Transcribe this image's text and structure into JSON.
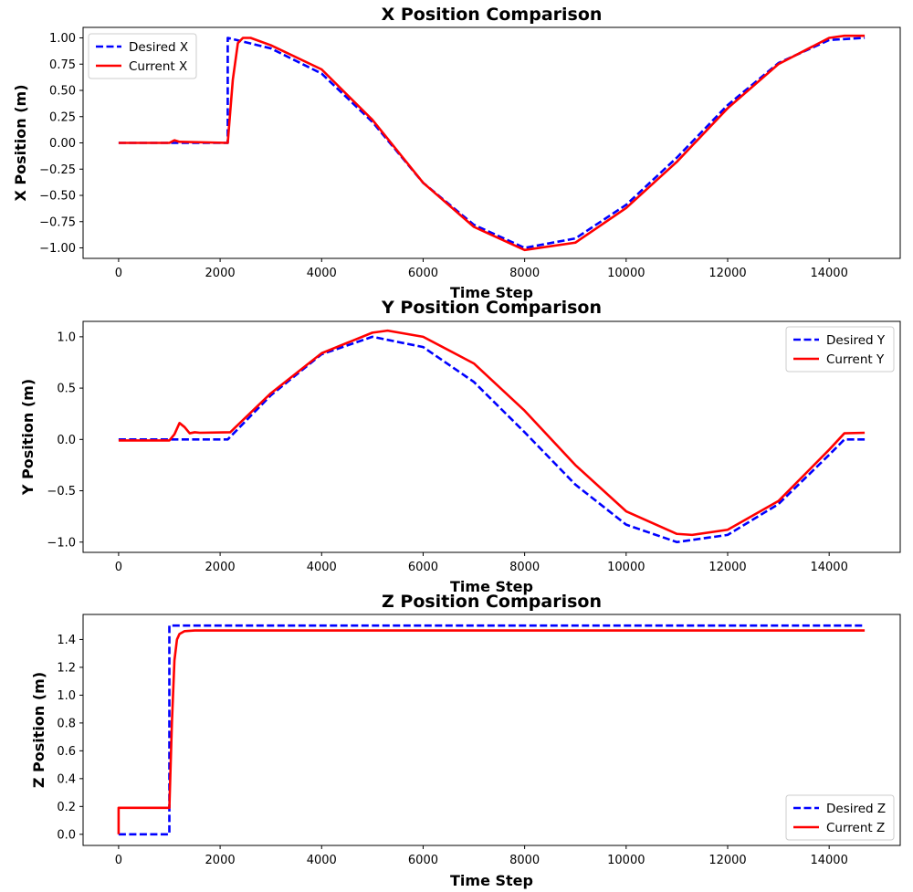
{
  "colors": {
    "desired": "#0000ff",
    "current": "#ff0000",
    "frame": "#000000",
    "legend_border": "#cccccc"
  },
  "chart_data": [
    {
      "type": "line",
      "title": "X Position Comparison",
      "xlabel": "Time Step",
      "ylabel": "X Position (m)",
      "xlim": [
        -700,
        15400
      ],
      "ylim": [
        -1.1,
        1.1
      ],
      "xticks": [
        0,
        2000,
        4000,
        6000,
        8000,
        10000,
        12000,
        14000
      ],
      "yticks": [
        -1.0,
        -0.75,
        -0.5,
        -0.25,
        0.0,
        0.25,
        0.5,
        0.75,
        1.0
      ],
      "ytick_labels": [
        "−1.00",
        "−0.75",
        "−0.50",
        "−0.25",
        "0.00",
        "0.25",
        "0.50",
        "0.75",
        "1.00"
      ],
      "legend_position": "upper-left",
      "grid": false,
      "series": [
        {
          "name": "Desired X",
          "style": "dashed",
          "color": "#0000ff",
          "x": [
            0,
            2150,
            2150,
            3000,
            4000,
            5000,
            6000,
            7000,
            8000,
            9000,
            10000,
            11000,
            12000,
            13000,
            14000,
            14700
          ],
          "y": [
            0,
            0,
            1.0,
            0.9,
            0.66,
            0.2,
            -0.38,
            -0.78,
            -1.0,
            -0.91,
            -0.59,
            -0.14,
            0.36,
            0.76,
            0.98,
            1.0
          ]
        },
        {
          "name": "Current X",
          "style": "solid",
          "color": "#ff0000",
          "x": [
            0,
            1000,
            1100,
            1200,
            2150,
            2250,
            2350,
            2450,
            2600,
            3000,
            4000,
            5000,
            6000,
            7000,
            8000,
            9000,
            10000,
            11000,
            12000,
            13000,
            14000,
            14300,
            14700
          ],
          "y": [
            0,
            0,
            0.025,
            0.01,
            0,
            0.6,
            0.95,
            1.0,
            1.0,
            0.93,
            0.7,
            0.22,
            -0.38,
            -0.8,
            -1.02,
            -0.95,
            -0.62,
            -0.18,
            0.33,
            0.75,
            1.0,
            1.02,
            1.02
          ]
        }
      ]
    },
    {
      "type": "line",
      "title": "Y Position Comparison",
      "xlabel": "Time Step",
      "ylabel": "Y Position (m)",
      "xlim": [
        -700,
        15400
      ],
      "ylim": [
        -1.1,
        1.15
      ],
      "xticks": [
        0,
        2000,
        4000,
        6000,
        8000,
        10000,
        12000,
        14000
      ],
      "yticks": [
        -1.0,
        -0.5,
        0.0,
        0.5,
        1.0
      ],
      "ytick_labels": [
        "−1.0",
        "−0.5",
        "0.0",
        "0.5",
        "1.0"
      ],
      "legend_position": "upper-right",
      "grid": false,
      "series": [
        {
          "name": "Desired Y",
          "style": "dashed",
          "color": "#0000ff",
          "x": [
            0,
            2150,
            3000,
            4000,
            5000,
            6000,
            7000,
            8000,
            9000,
            10000,
            11000,
            12000,
            13000,
            14000,
            14300,
            14700
          ],
          "y": [
            0,
            0,
            0.43,
            0.83,
            1.0,
            0.9,
            0.56,
            0.07,
            -0.44,
            -0.83,
            -1.0,
            -0.93,
            -0.63,
            -0.15,
            0,
            0
          ]
        },
        {
          "name": "Current Y",
          "style": "solid",
          "color": "#ff0000",
          "x": [
            0,
            1000,
            1100,
            1200,
            1300,
            1400,
            1500,
            1600,
            2200,
            3000,
            4000,
            5000,
            5300,
            6000,
            7000,
            8000,
            9000,
            10000,
            11000,
            11300,
            12000,
            13000,
            14000,
            14300,
            14700
          ],
          "y": [
            -0.01,
            -0.01,
            0.05,
            0.16,
            0.12,
            0.06,
            0.07,
            0.065,
            0.07,
            0.45,
            0.84,
            1.04,
            1.06,
            1.0,
            0.74,
            0.28,
            -0.25,
            -0.7,
            -0.92,
            -0.93,
            -0.88,
            -0.6,
            -0.1,
            0.06,
            0.065
          ]
        }
      ]
    },
    {
      "type": "line",
      "title": "Z Position Comparison",
      "xlabel": "Time Step",
      "ylabel": "Z Position (m)",
      "xlim": [
        -700,
        15400
      ],
      "ylim": [
        -0.08,
        1.58
      ],
      "xticks": [
        0,
        2000,
        4000,
        6000,
        8000,
        10000,
        12000,
        14000
      ],
      "yticks": [
        0.0,
        0.2,
        0.4,
        0.6,
        0.8,
        1.0,
        1.2,
        1.4
      ],
      "ytick_labels": [
        "0.0",
        "0.2",
        "0.4",
        "0.6",
        "0.8",
        "1.0",
        "1.2",
        "1.4"
      ],
      "legend_position": "lower-right",
      "grid": false,
      "series": [
        {
          "name": "Desired Z",
          "style": "dashed",
          "color": "#0000ff",
          "x": [
            0,
            1000,
            1000,
            14700
          ],
          "y": [
            0,
            0,
            1.5,
            1.5
          ]
        },
        {
          "name": "Current Z",
          "style": "solid",
          "color": "#ff0000",
          "x": [
            0,
            0,
            1000,
            1050,
            1100,
            1150,
            1200,
            1300,
            1500,
            14700
          ],
          "y": [
            0,
            0.19,
            0.19,
            0.8,
            1.25,
            1.4,
            1.44,
            1.46,
            1.465,
            1.465
          ]
        }
      ]
    }
  ]
}
